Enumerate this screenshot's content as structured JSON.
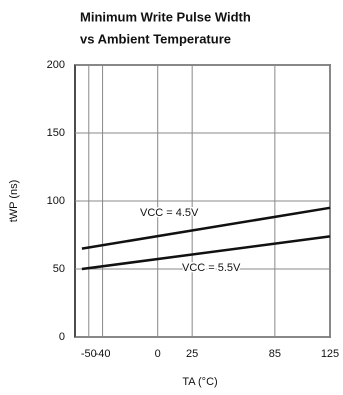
{
  "chart_data": {
    "type": "line",
    "title": "Minimum Write Pulse Width",
    "subtitle": "vs Ambient Temperature",
    "x_label": "TA (°C)",
    "y_label": "tWP (ns)",
    "x": [
      -55,
      125
    ],
    "series": [
      {
        "name": "VCC = 4.5V",
        "color": "#111111",
        "values": [
          65,
          95
        ]
      },
      {
        "name": "VCC = 5.5V",
        "color": "#111111",
        "values": [
          50,
          74
        ]
      }
    ],
    "xlim": [
      -60,
      125
    ],
    "xticks": [
      -50,
      -40,
      0,
      25,
      85,
      125
    ],
    "ylim": [
      0,
      200
    ],
    "yticks": [
      0,
      50,
      100,
      150,
      200
    ],
    "grid": true
  }
}
